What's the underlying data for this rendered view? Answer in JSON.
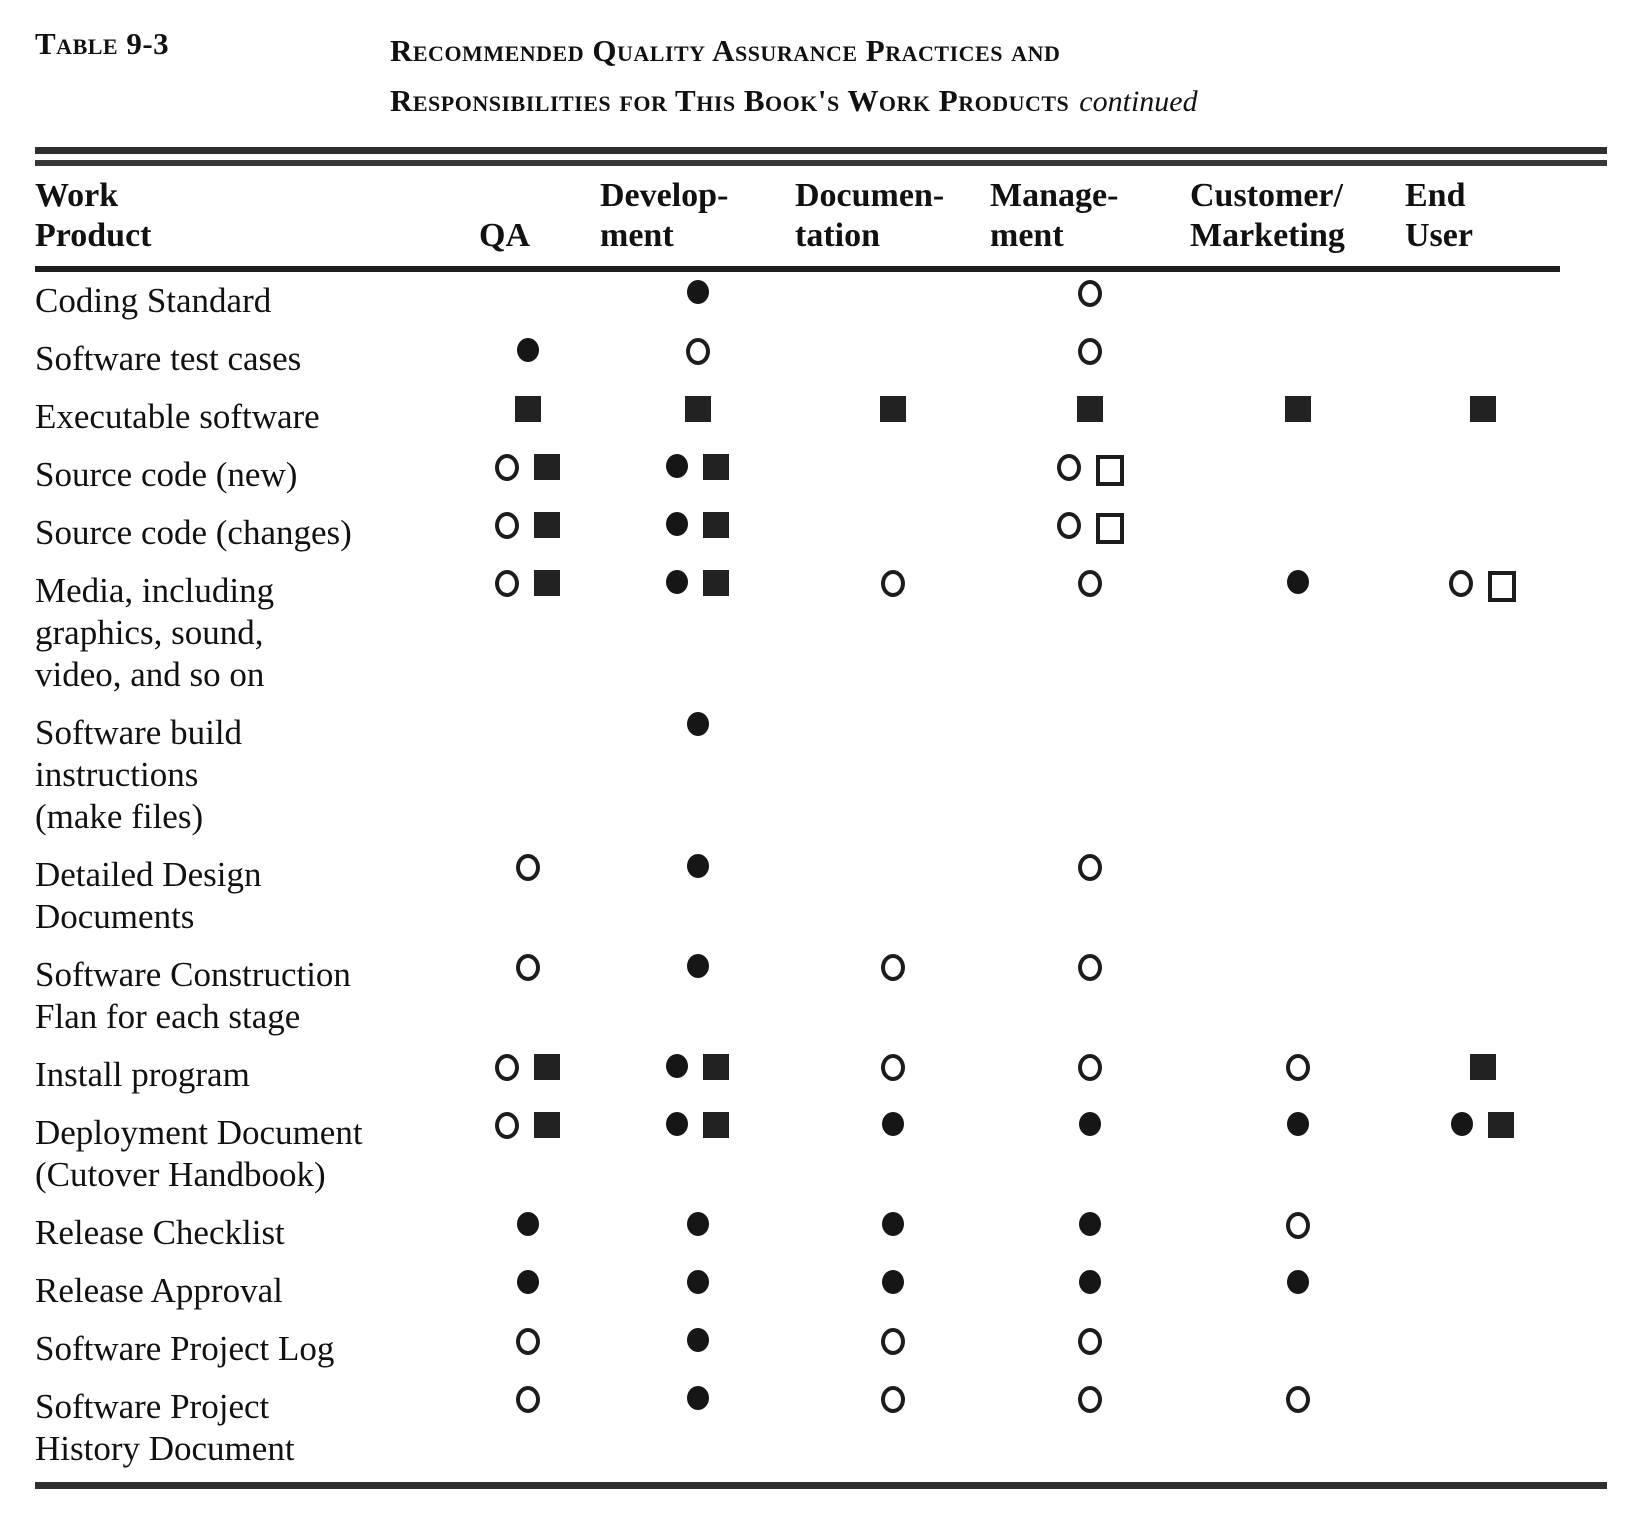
{
  "page": {
    "label": "Table 9-3",
    "title_line1": "Recommended Quality Assurance Practices and",
    "title_line2": "Responsibilities for This Book's Work Products",
    "continued": "continued"
  },
  "colors": {
    "ink": "#111111",
    "paper": "#ffffff"
  },
  "symbols": {
    "filled-circle": "●",
    "open-circle": "○",
    "filled-square": "■",
    "open-square": "□"
  },
  "table": {
    "columns": [
      {
        "key": "product",
        "label": "Work\nProduct"
      },
      {
        "key": "qa",
        "label": "QA"
      },
      {
        "key": "development",
        "label": "Develop-\nment"
      },
      {
        "key": "documentation",
        "label": "Documen-\ntation"
      },
      {
        "key": "management",
        "label": "Manage-\nment"
      },
      {
        "key": "customer_marketing",
        "label": "Customer/\nMarketing"
      },
      {
        "key": "end_user",
        "label": "End\nUser"
      }
    ],
    "rows": [
      {
        "product": "Coding Standard",
        "cells": [
          [],
          [
            "filled-circle"
          ],
          [],
          [
            "open-circle"
          ],
          [],
          []
        ]
      },
      {
        "product": "Software test cases",
        "cells": [
          [
            "filled-circle"
          ],
          [
            "open-circle"
          ],
          [],
          [
            "open-circle"
          ],
          [],
          []
        ]
      },
      {
        "product": "Executable software",
        "cells": [
          [
            "filled-square"
          ],
          [
            "filled-square"
          ],
          [
            "filled-square"
          ],
          [
            "filled-square"
          ],
          [
            "filled-square"
          ],
          [
            "filled-square"
          ]
        ]
      },
      {
        "product": "Source code (new)",
        "cells": [
          [
            "open-circle",
            "filled-square"
          ],
          [
            "filled-circle",
            "filled-square"
          ],
          [],
          [
            "open-circle",
            "open-square"
          ],
          [],
          []
        ]
      },
      {
        "product": "Source code (changes)",
        "cells": [
          [
            "open-circle",
            "filled-square"
          ],
          [
            "filled-circle",
            "filled-square"
          ],
          [],
          [
            "open-circle",
            "open-square"
          ],
          [],
          []
        ]
      },
      {
        "product": "Media, including\ngraphics, sound,\nvideo, and so on",
        "cells": [
          [
            "open-circle",
            "filled-square"
          ],
          [
            "filled-circle",
            "filled-square"
          ],
          [
            "open-circle"
          ],
          [
            "open-circle"
          ],
          [
            "filled-circle"
          ],
          [
            "open-circle",
            "open-square"
          ]
        ]
      },
      {
        "product": "Software  build\ninstructions\n(make files)",
        "cells": [
          [],
          [
            "filled-circle"
          ],
          [],
          [],
          [],
          []
        ]
      },
      {
        "product": "Detailed Design\nDocuments",
        "cells": [
          [
            "open-circle"
          ],
          [
            "filled-circle"
          ],
          [],
          [
            "open-circle"
          ],
          [],
          []
        ]
      },
      {
        "product": "Software  Construction\nFlan for each stage",
        "cells": [
          [
            "open-circle"
          ],
          [
            "filled-circle"
          ],
          [
            "open-circle"
          ],
          [
            "open-circle"
          ],
          [],
          []
        ]
      },
      {
        "product": "Install program",
        "cells": [
          [
            "open-circle",
            "filled-square"
          ],
          [
            "filled-circle",
            "filled-square"
          ],
          [
            "open-circle"
          ],
          [
            "open-circle"
          ],
          [
            "open-circle"
          ],
          [
            "filled-square"
          ]
        ]
      },
      {
        "product": "Deployment Document\n(Cutover  Handbook)",
        "cells": [
          [
            "open-circle",
            "filled-square"
          ],
          [
            "filled-circle",
            "filled-square"
          ],
          [
            "filled-circle"
          ],
          [
            "filled-circle"
          ],
          [
            "filled-circle"
          ],
          [
            "filled-circle",
            "filled-square"
          ]
        ]
      },
      {
        "product": "Release  Checklist",
        "cells": [
          [
            "filled-circle"
          ],
          [
            "filled-circle"
          ],
          [
            "filled-circle"
          ],
          [
            "filled-circle"
          ],
          [
            "open-circle"
          ],
          []
        ]
      },
      {
        "product": "Release  Approval",
        "cells": [
          [
            "filled-circle"
          ],
          [
            "filled-circle"
          ],
          [
            "filled-circle"
          ],
          [
            "filled-circle"
          ],
          [
            "filled-circle"
          ],
          []
        ]
      },
      {
        "product": "Software Project Log",
        "cells": [
          [
            "open-circle"
          ],
          [
            "filled-circle"
          ],
          [
            "open-circle"
          ],
          [
            "open-circle"
          ],
          [],
          []
        ]
      },
      {
        "product": "Software Project\nHistory Document",
        "cells": [
          [
            "open-circle"
          ],
          [
            "filled-circle"
          ],
          [
            "open-circle"
          ],
          [
            "open-circle"
          ],
          [
            "open-circle"
          ],
          []
        ]
      }
    ]
  }
}
